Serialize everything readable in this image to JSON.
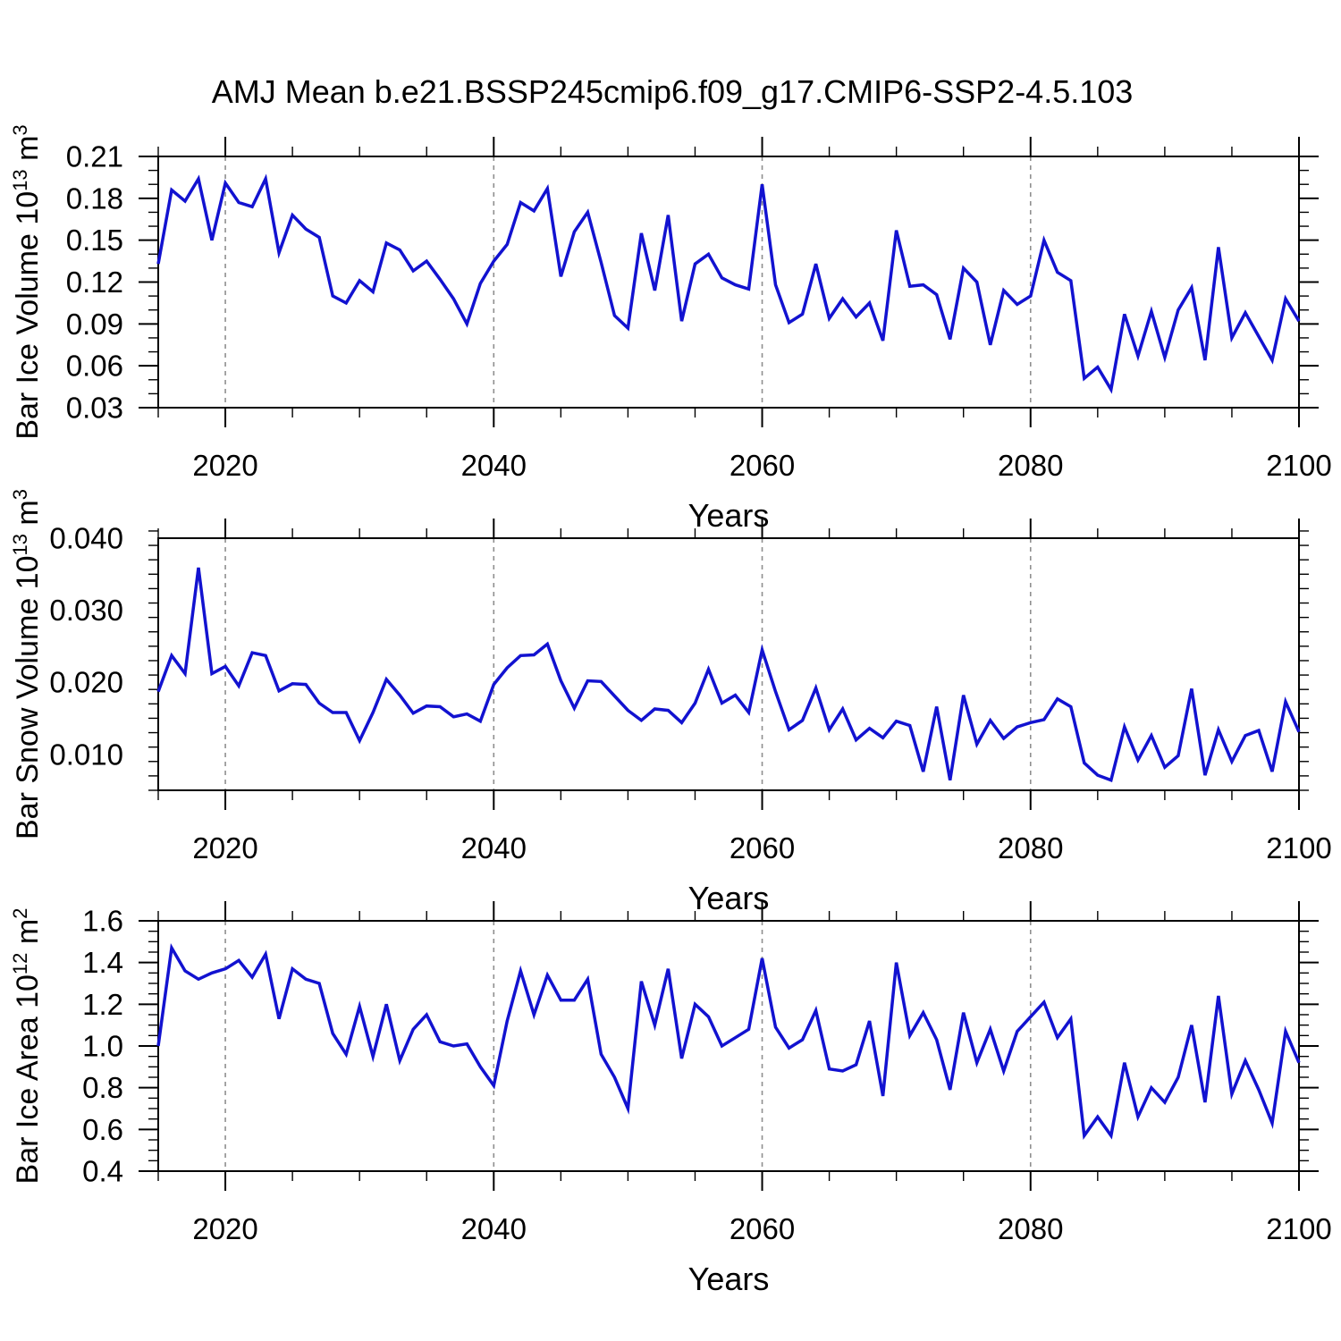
{
  "title": "AMJ Mean b.e21.BSSP245cmip6.f09_g17.CMIP6-SSP2-4.5.103",
  "styles": {
    "line_color": "#1212d0",
    "grid_color": "#8f8f8f",
    "axis_color": "#000000",
    "background": "#ffffff",
    "text_color": "#000000"
  },
  "years": [
    2015,
    2016,
    2017,
    2018,
    2019,
    2020,
    2021,
    2022,
    2023,
    2024,
    2025,
    2026,
    2027,
    2028,
    2029,
    2030,
    2031,
    2032,
    2033,
    2034,
    2035,
    2036,
    2037,
    2038,
    2039,
    2040,
    2041,
    2042,
    2043,
    2044,
    2045,
    2046,
    2047,
    2048,
    2049,
    2050,
    2051,
    2052,
    2053,
    2054,
    2055,
    2056,
    2057,
    2058,
    2059,
    2060,
    2061,
    2062,
    2063,
    2064,
    2065,
    2066,
    2067,
    2068,
    2069,
    2070,
    2071,
    2072,
    2073,
    2074,
    2075,
    2076,
    2077,
    2078,
    2079,
    2080,
    2081,
    2082,
    2083,
    2084,
    2085,
    2086,
    2087,
    2088,
    2089,
    2090,
    2091,
    2092,
    2093,
    2094,
    2095,
    2096,
    2097,
    2098,
    2099,
    2100
  ],
  "chart_data": [
    {
      "type": "line",
      "name": "ice-volume",
      "title": "",
      "xlabel": "Years",
      "ylabel": "Bar Ice Volume 10^13 m^3",
      "ylabel_parts": [
        {
          "t": "Bar Ice Volume 10"
        },
        {
          "t": "13",
          "sup": true
        },
        {
          "t": " m"
        },
        {
          "t": "3",
          "sup": true
        }
      ],
      "ylim": [
        0.03,
        0.21
      ],
      "yticks": [
        0.03,
        0.06,
        0.09,
        0.12,
        0.15,
        0.18,
        0.21
      ],
      "ytick_labels": [
        "0.03",
        "0.06",
        "0.09",
        "0.12",
        "0.15",
        "0.18",
        "0.21"
      ],
      "yminor_step": 0.01,
      "xlim": [
        2015,
        2100
      ],
      "xticks": [
        2020,
        2040,
        2060,
        2080,
        2100
      ],
      "xtick_labels": [
        "2020",
        "2040",
        "2060",
        "2080",
        "2100"
      ],
      "xminor_step": 5,
      "xgrid_dashed": [
        2020,
        2040,
        2060,
        2080
      ],
      "grid": "vertical-dashed",
      "legend": "none",
      "values": [
        0.133,
        0.186,
        0.178,
        0.194,
        0.15,
        0.191,
        0.177,
        0.174,
        0.194,
        0.141,
        0.168,
        0.158,
        0.152,
        0.11,
        0.105,
        0.121,
        0.113,
        0.148,
        0.143,
        0.128,
        0.135,
        0.122,
        0.108,
        0.09,
        0.119,
        0.135,
        0.147,
        0.177,
        0.171,
        0.187,
        0.124,
        0.156,
        0.17,
        0.134,
        0.096,
        0.087,
        0.155,
        0.114,
        0.168,
        0.092,
        0.133,
        0.14,
        0.123,
        0.118,
        0.115,
        0.19,
        0.118,
        0.091,
        0.097,
        0.133,
        0.094,
        0.108,
        0.095,
        0.105,
        0.078,
        0.157,
        0.117,
        0.118,
        0.111,
        0.079,
        0.13,
        0.12,
        0.075,
        0.114,
        0.104,
        0.11,
        0.15,
        0.127,
        0.121,
        0.051,
        0.059,
        0.043,
        0.097,
        0.067,
        0.099,
        0.066,
        0.1,
        0.116,
        0.064,
        0.145,
        0.08,
        0.098,
        0.081,
        0.064,
        0.108,
        0.092
      ]
    },
    {
      "type": "line",
      "name": "snow-volume",
      "title": "",
      "xlabel": "Years",
      "ylabel": "Bar Snow Volume 10^13 m^3",
      "ylabel_parts": [
        {
          "t": "Bar Snow Volume 10"
        },
        {
          "t": "13",
          "sup": true
        },
        {
          "t": " m"
        },
        {
          "t": "3",
          "sup": true
        }
      ],
      "ylim": [
        0.005,
        0.04
      ],
      "yticks": [
        0.01,
        0.02,
        0.03,
        0.04
      ],
      "ytick_labels": [
        "0.010",
        "0.020",
        "0.030",
        "0.040"
      ],
      "yminor_step": 0.002,
      "xlim": [
        2015,
        2100
      ],
      "xticks": [
        2020,
        2040,
        2060,
        2080,
        2100
      ],
      "xtick_labels": [
        "2020",
        "2040",
        "2060",
        "2080",
        "2100"
      ],
      "xminor_step": 5,
      "xgrid_dashed": [
        2020,
        2040,
        2060,
        2080
      ],
      "grid": "vertical-dashed",
      "legend": "none",
      "values": [
        0.0187,
        0.0237,
        0.0212,
        0.0359,
        0.0212,
        0.0222,
        0.0195,
        0.0241,
        0.0237,
        0.0188,
        0.0198,
        0.0197,
        0.0171,
        0.0158,
        0.0158,
        0.0119,
        0.0158,
        0.0204,
        0.0182,
        0.0157,
        0.0167,
        0.0166,
        0.0152,
        0.0156,
        0.0146,
        0.0197,
        0.022,
        0.0237,
        0.0238,
        0.0253,
        0.0202,
        0.0164,
        0.0202,
        0.0201,
        0.0181,
        0.0161,
        0.0147,
        0.0163,
        0.0161,
        0.0144,
        0.0171,
        0.0218,
        0.0171,
        0.0182,
        0.0158,
        0.0245,
        0.0187,
        0.0134,
        0.0147,
        0.0192,
        0.0134,
        0.0163,
        0.012,
        0.0136,
        0.0123,
        0.0146,
        0.014,
        0.0076,
        0.0166,
        0.0064,
        0.0182,
        0.0114,
        0.0147,
        0.0122,
        0.0138,
        0.0144,
        0.0148,
        0.0177,
        0.0166,
        0.0088,
        0.0071,
        0.0064,
        0.0138,
        0.0092,
        0.0126,
        0.0082,
        0.0098,
        0.0191,
        0.0071,
        0.0134,
        0.009,
        0.0126,
        0.0133,
        0.0076,
        0.0173,
        0.0131
      ]
    },
    {
      "type": "line",
      "name": "ice-area",
      "title": "",
      "xlabel": "Years",
      "ylabel": "Bar Ice Area 10^12 m^2",
      "ylabel_parts": [
        {
          "t": "Bar Ice Area 10"
        },
        {
          "t": "12",
          "sup": true
        },
        {
          "t": " m"
        },
        {
          "t": "2",
          "sup": true
        }
      ],
      "ylim": [
        0.4,
        1.6
      ],
      "yticks": [
        0.4,
        0.6,
        0.8,
        1.0,
        1.2,
        1.4,
        1.6
      ],
      "ytick_labels": [
        "0.4",
        "0.6",
        "0.8",
        "1.0",
        "1.2",
        "1.4",
        "1.6"
      ],
      "yminor_step": 0.05,
      "xlim": [
        2015,
        2100
      ],
      "xticks": [
        2020,
        2040,
        2060,
        2080,
        2100
      ],
      "xtick_labels": [
        "2020",
        "2040",
        "2060",
        "2080",
        "2100"
      ],
      "xminor_step": 5,
      "xgrid_dashed": [
        2020,
        2040,
        2060,
        2080
      ],
      "grid": "vertical-dashed",
      "legend": "none",
      "values": [
        1.0,
        1.47,
        1.36,
        1.32,
        1.35,
        1.37,
        1.41,
        1.33,
        1.44,
        1.13,
        1.37,
        1.32,
        1.3,
        1.06,
        0.96,
        1.19,
        0.95,
        1.2,
        0.93,
        1.08,
        1.15,
        1.02,
        1.0,
        1.01,
        0.9,
        0.81,
        1.12,
        1.36,
        1.15,
        1.34,
        1.22,
        1.22,
        1.32,
        0.96,
        0.85,
        0.7,
        1.31,
        1.1,
        1.37,
        0.94,
        1.2,
        1.14,
        1.0,
        1.04,
        1.08,
        1.42,
        1.09,
        0.99,
        1.03,
        1.17,
        0.89,
        0.88,
        0.91,
        1.12,
        0.76,
        1.4,
        1.05,
        1.16,
        1.03,
        0.79,
        1.16,
        0.92,
        1.08,
        0.88,
        1.07,
        1.14,
        1.21,
        1.04,
        1.13,
        0.57,
        0.66,
        0.57,
        0.92,
        0.66,
        0.8,
        0.73,
        0.85,
        1.1,
        0.73,
        1.24,
        0.77,
        0.93,
        0.79,
        0.63,
        1.07,
        0.92
      ]
    }
  ]
}
